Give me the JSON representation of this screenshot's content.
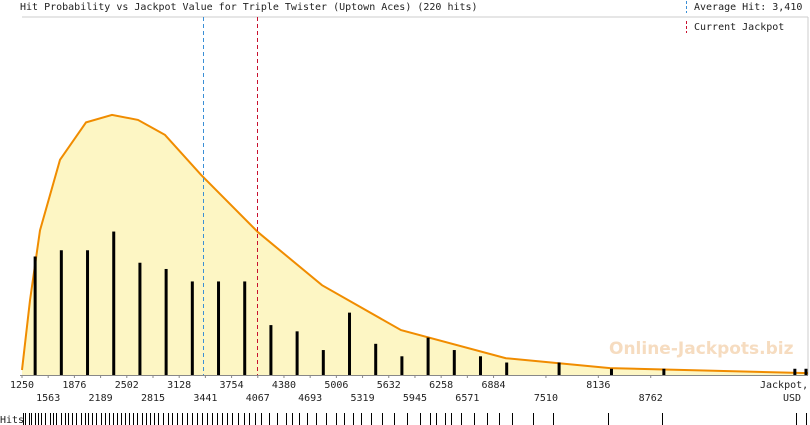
{
  "chart_data": {
    "type": "histogram-density",
    "title": "Hit Probability vs Jackpot Value for Triple Twister (Uptown Aces) (220 hits)",
    "xlabel": [
      "Jackpot,",
      "USD"
    ],
    "rug_label": "Hits",
    "watermark": "Online-Jackpots.biz",
    "xlim": [
      1250,
      10641
    ],
    "ylim": [
      0,
      57.4
    ],
    "xticks": [
      1250,
      1563,
      1876,
      2189,
      2502,
      2815,
      3128,
      3441,
      3754,
      4067,
      4380,
      4693,
      5006,
      5319,
      5632,
      5945,
      6258,
      6571,
      6884,
      7510,
      8136,
      8762
    ],
    "bars": {
      "color": "#000000",
      "x": [
        1407,
        1720,
        2033,
        2346,
        2659,
        2972,
        3285,
        3598,
        3911,
        4224,
        4537,
        4850,
        5163,
        5476,
        5789,
        6102,
        6415,
        6728,
        7041,
        7667,
        8293,
        8919,
        10484,
        10617
      ],
      "values": [
        19,
        20,
        20,
        23,
        18,
        17,
        15,
        15,
        15,
        8,
        7,
        4,
        10,
        5,
        3,
        6,
        4,
        3,
        2,
        2,
        1,
        1,
        1,
        1
      ]
    },
    "curve": {
      "color": "#f08c00",
      "fill": "#fdf6c4",
      "x": [
        1250,
        1346,
        1465,
        1704,
        2015,
        2325,
        2636,
        2958,
        3389,
        4070,
        4834,
        5778,
        7032,
        8275,
        10641
      ],
      "values": [
        0.8,
        12.0,
        23.2,
        34.5,
        40.5,
        41.7,
        40.9,
        38.5,
        32.1,
        22.9,
        14.4,
        7.2,
        2.7,
        1.1,
        0.3
      ]
    },
    "legend": [
      {
        "label": "Average Hit: 3,410",
        "value": 3410,
        "color": "#3a8fd6"
      },
      {
        "label": "Current Jackpot",
        "value": 4060,
        "color": "#c8102e"
      }
    ],
    "hits": [
      1260,
      1290,
      1330,
      1360,
      1400,
      1440,
      1480,
      1530,
      1580,
      1620,
      1660,
      1710,
      1760,
      1800,
      1850,
      1900,
      1950,
      2000,
      2040,
      2090,
      2140,
      2190,
      2240,
      2290,
      2340,
      2380,
      2430,
      2480,
      2530,
      2580,
      2620,
      2680,
      2730,
      2780,
      2830,
      2880,
      2930,
      2990,
      3040,
      3100,
      3160,
      3220,
      3280,
      3340,
      3400,
      3460,
      3520,
      3580,
      3640,
      3700,
      3760,
      3830,
      3900,
      3960,
      4030,
      4100,
      4200,
      4300,
      4400,
      4480,
      4560,
      4650,
      4760,
      4880,
      5000,
      5100,
      5200,
      5300,
      5420,
      5550,
      5700,
      5850,
      6000,
      6120,
      6200,
      6300,
      6380,
      6500,
      6650,
      6800,
      6950,
      7100,
      7350,
      7600,
      8250,
      8900,
      10500,
      10620
    ]
  }
}
